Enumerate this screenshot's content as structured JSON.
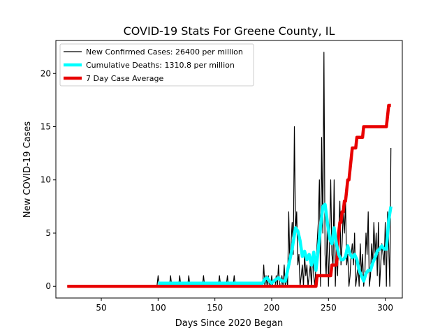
{
  "chart_data": {
    "type": "line",
    "title": "COVID-19 Stats For Greene County, IL",
    "xlabel": "Days Since 2020 Began",
    "ylabel": "New COVID-19 Cases",
    "xlim": [
      10,
      315
    ],
    "ylim": [
      -1.1,
      23.1
    ],
    "x_ticks": [
      50,
      100,
      150,
      200,
      250,
      300
    ],
    "y_ticks": [
      0,
      5,
      10,
      15,
      20
    ],
    "grid": false,
    "legend_position": "top-left",
    "series": [
      {
        "name": "New Confirmed Cases: 26400 per million",
        "color": "#000000",
        "style": "thin",
        "x": [
          20,
          99,
          100,
          101,
          110,
          111,
          112,
          118,
          119,
          120,
          126,
          127,
          128,
          139,
          140,
          141,
          153,
          154,
          155,
          160,
          161,
          162,
          166,
          167,
          168,
          192,
          193,
          194,
          195,
          196,
          197,
          198,
          199,
          200,
          201,
          202,
          203,
          204,
          205,
          206,
          207,
          208,
          209,
          210,
          211,
          212,
          213,
          214,
          215,
          216,
          217,
          218,
          219,
          220,
          221,
          222,
          223,
          224,
          225,
          226,
          227,
          228,
          229,
          230,
          231,
          232,
          233,
          234,
          235,
          236,
          237,
          238,
          239,
          240,
          241,
          242,
          243,
          244,
          245,
          246,
          247,
          248,
          249,
          250,
          251,
          252,
          253,
          254,
          255,
          256,
          257,
          258,
          259,
          260,
          261,
          262,
          263,
          264,
          265,
          266,
          267,
          268,
          269,
          270,
          271,
          272,
          273,
          274,
          275,
          276,
          277,
          278,
          279,
          280,
          281,
          282,
          283,
          284,
          285,
          286,
          287,
          288,
          289,
          290,
          291,
          292,
          293,
          294,
          295,
          296,
          297,
          298,
          299,
          300,
          301,
          302,
          303,
          304,
          305
        ],
        "y": [
          0,
          0,
          1,
          0,
          0,
          1,
          0,
          0,
          1,
          0,
          0,
          1,
          0,
          0,
          1,
          0,
          0,
          1,
          0,
          0,
          1,
          0,
          0,
          1,
          0,
          0,
          2,
          0,
          1,
          0,
          1,
          0,
          0,
          1,
          0,
          0,
          0,
          1,
          0,
          2,
          0,
          0,
          1,
          0,
          2,
          0,
          1,
          0,
          7,
          2,
          4,
          6,
          3,
          15,
          5,
          7,
          2,
          3,
          0,
          1,
          2,
          0,
          3,
          1,
          2,
          0,
          1,
          2,
          0,
          3,
          1,
          0,
          2,
          4,
          6,
          10,
          0,
          14,
          5,
          22,
          3,
          1,
          6,
          0,
          4,
          10,
          3,
          2,
          10,
          0,
          4,
          1,
          5,
          8,
          2,
          4,
          7,
          5,
          8,
          2,
          3,
          0,
          1,
          3,
          4,
          2,
          5,
          0,
          1,
          2,
          0,
          4,
          1,
          3,
          0,
          1,
          5,
          3,
          7,
          0,
          1,
          4,
          2,
          6,
          3,
          5,
          1,
          6,
          0,
          2,
          4,
          3,
          2,
          6,
          0,
          7,
          4,
          0,
          13
        ]
      },
      {
        "name": "Cumulative Deaths: 1310.8 per million",
        "color": "#00ffff",
        "style": "medium",
        "x": [
          100,
          132,
          141,
          146,
          153,
          173,
          192,
          194,
          196,
          198,
          200,
          203,
          206,
          209,
          212,
          215,
          218,
          221,
          223,
          225,
          227,
          229,
          231,
          233,
          235,
          237,
          239,
          241,
          243,
          245,
          247,
          249,
          251,
          253,
          255,
          257,
          259,
          261,
          263,
          265,
          267,
          269,
          271,
          273,
          275,
          277,
          279,
          281,
          283,
          285,
          287,
          289,
          291,
          293,
          295,
          297,
          299,
          301,
          303,
          305
        ],
        "y": [
          0.3,
          0.3,
          0.3,
          0.3,
          0.3,
          0.3,
          0.3,
          0.7,
          0.8,
          0.5,
          0.3,
          0.6,
          0.8,
          0.5,
          0.5,
          2.0,
          3.5,
          5.5,
          5.2,
          4.3,
          2.8,
          3.3,
          2.5,
          3.0,
          2.0,
          3.2,
          1.5,
          3.5,
          5.5,
          7.5,
          7.7,
          6.0,
          4.5,
          4.0,
          5.5,
          4.0,
          3.0,
          2.5,
          2.5,
          2.8,
          3.8,
          3.0,
          2.7,
          3.0,
          2.5,
          1.5,
          1.0,
          0.5,
          1.2,
          1.5,
          1.5,
          2.2,
          2.7,
          3.3,
          3.5,
          3.8,
          3.5,
          3.5,
          6.2,
          7.5
        ]
      },
      {
        "name": "7 Day Case Average",
        "color": "#e80000",
        "style": "thick",
        "x": [
          20,
          239,
          240,
          245,
          246,
          252,
          253,
          257,
          258,
          259,
          260,
          261,
          262,
          263,
          264,
          265,
          266,
          267,
          268,
          269,
          270,
          271,
          272,
          273,
          274,
          275,
          276,
          277,
          278,
          279,
          280,
          281,
          282,
          283,
          284,
          285,
          286,
          287,
          288,
          289,
          290,
          291,
          292,
          293,
          294,
          295,
          296,
          297,
          298,
          299,
          300,
          301,
          302,
          303,
          304,
          305
        ],
        "y": [
          0,
          0,
          1,
          1,
          1,
          1,
          2,
          2,
          3,
          5,
          6,
          6,
          7,
          7,
          8,
          8,
          9,
          10,
          10,
          11,
          12,
          13,
          13,
          13,
          13,
          14,
          14,
          14,
          14,
          14,
          14,
          15,
          15,
          15,
          15,
          15,
          15,
          15,
          15,
          15,
          15,
          15,
          15,
          15,
          15,
          15,
          15,
          15,
          15,
          15,
          15,
          15,
          16,
          17,
          17,
          17
        ]
      }
    ]
  }
}
